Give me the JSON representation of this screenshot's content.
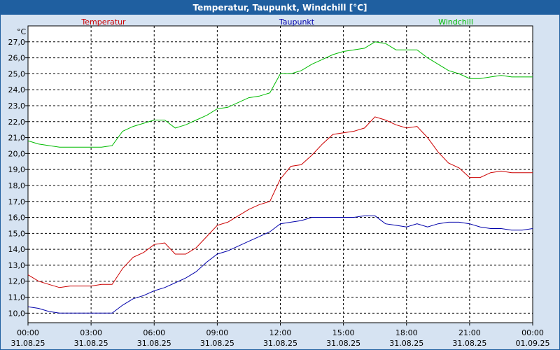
{
  "window": {
    "title": "Temperatur, Taupunkt, Windchill [°C]"
  },
  "chart_data": {
    "type": "line",
    "title": "Temperatur, Taupunkt, Windchill [°C]",
    "ylabel": "°C",
    "ylim": [
      9.4,
      28.0
    ],
    "yticks": [
      "10,0",
      "11,0",
      "12,0",
      "13,0",
      "14,0",
      "15,0",
      "16,0",
      "17,0",
      "18,0",
      "19,0",
      "20,0",
      "21,0",
      "22,0",
      "23,0",
      "24,0",
      "25,0",
      "26,0",
      "27,0"
    ],
    "xlim": [
      0,
      24
    ],
    "xticks": [
      {
        "time": "00:00",
        "date": "31.08.25"
      },
      {
        "time": "03:00",
        "date": "31.08.25"
      },
      {
        "time": "06:00",
        "date": "31.08.25"
      },
      {
        "time": "09:00",
        "date": "31.08.25"
      },
      {
        "time": "12:00",
        "date": "31.08.25"
      },
      {
        "time": "15:00",
        "date": "31.08.25"
      },
      {
        "time": "18:00",
        "date": "31.08.25"
      },
      {
        "time": "21:00",
        "date": "31.08.25"
      },
      {
        "time": "00:00",
        "date": "01.09.25"
      }
    ],
    "grid": true,
    "legend_position": "top",
    "series": [
      {
        "name": "Temperatur",
        "color": "#cc0000",
        "x": [
          0,
          0.5,
          1,
          1.5,
          2,
          2.5,
          3,
          3.5,
          4,
          4.5,
          5,
          5.5,
          6,
          6.5,
          7,
          7.5,
          8,
          8.5,
          9,
          9.5,
          10,
          10.5,
          11,
          11.5,
          12,
          12.5,
          13,
          13.5,
          14,
          14.5,
          15,
          15.5,
          16,
          16.5,
          17,
          17.5,
          18,
          18.5,
          19,
          19.5,
          20,
          20.5,
          21,
          21.5,
          22,
          22.5,
          23,
          23.5,
          24
        ],
        "values": [
          12.4,
          12.0,
          11.8,
          11.6,
          11.7,
          11.7,
          11.7,
          11.8,
          11.8,
          12.8,
          13.5,
          13.8,
          14.3,
          14.4,
          13.7,
          13.7,
          14.1,
          14.8,
          15.5,
          15.7,
          16.1,
          16.5,
          16.8,
          17.0,
          18.4,
          19.2,
          19.3,
          19.9,
          20.6,
          21.2,
          21.3,
          21.4,
          21.6,
          22.3,
          22.1,
          21.8,
          21.6,
          21.7,
          21.0,
          20.1,
          19.4,
          19.1,
          18.5,
          18.5,
          18.8,
          18.9,
          18.8,
          18.8,
          18.8
        ]
      },
      {
        "name": "Taupunkt",
        "color": "#0000aa",
        "x": [
          0,
          0.5,
          1,
          1.5,
          2,
          2.5,
          3,
          3.5,
          4,
          4.5,
          5,
          5.5,
          6,
          6.5,
          7,
          7.5,
          8,
          8.5,
          9,
          9.5,
          10,
          10.5,
          11,
          11.5,
          12,
          12.5,
          13,
          13.5,
          14,
          14.5,
          15,
          15.5,
          16,
          16.5,
          17,
          17.5,
          18,
          18.5,
          19,
          19.5,
          20,
          20.5,
          21,
          21.5,
          22,
          22.5,
          23,
          23.5,
          24
        ],
        "values": [
          10.4,
          10.3,
          10.1,
          10.0,
          10.0,
          10.0,
          10.0,
          10.0,
          10.0,
          10.5,
          10.9,
          11.1,
          11.4,
          11.6,
          11.9,
          12.2,
          12.6,
          13.2,
          13.7,
          13.9,
          14.2,
          14.5,
          14.8,
          15.1,
          15.6,
          15.7,
          15.8,
          16.0,
          16.0,
          16.0,
          16.0,
          16.0,
          16.1,
          16.1,
          15.6,
          15.5,
          15.4,
          15.6,
          15.4,
          15.6,
          15.7,
          15.7,
          15.6,
          15.4,
          15.3,
          15.3,
          15.2,
          15.2,
          15.3
        ]
      },
      {
        "name": "Windchill",
        "color": "#00bb00",
        "x": [
          0,
          0.5,
          1,
          1.5,
          2,
          2.5,
          3,
          3.5,
          4,
          4.5,
          5,
          5.5,
          6,
          6.5,
          7,
          7.5,
          8,
          8.5,
          9,
          9.5,
          10,
          10.5,
          11,
          11.5,
          12,
          12.5,
          13,
          13.5,
          14,
          14.5,
          15,
          15.5,
          16,
          16.5,
          17,
          17.5,
          18,
          18.5,
          19,
          19.5,
          20,
          20.5,
          21,
          21.5,
          22,
          22.5,
          23,
          23.5,
          24
        ],
        "values": [
          20.8,
          20.6,
          20.5,
          20.4,
          20.4,
          20.4,
          20.4,
          20.4,
          20.5,
          21.4,
          21.7,
          21.9,
          22.1,
          22.1,
          21.6,
          21.8,
          22.1,
          22.4,
          22.8,
          22.9,
          23.2,
          23.5,
          23.6,
          23.8,
          25.0,
          25.0,
          25.2,
          25.6,
          25.9,
          26.2,
          26.4,
          26.5,
          26.6,
          27.0,
          26.9,
          26.5,
          26.5,
          26.5,
          26.0,
          25.6,
          25.2,
          25.0,
          24.7,
          24.7,
          24.8,
          24.9,
          24.8,
          24.8,
          24.8
        ]
      }
    ]
  }
}
